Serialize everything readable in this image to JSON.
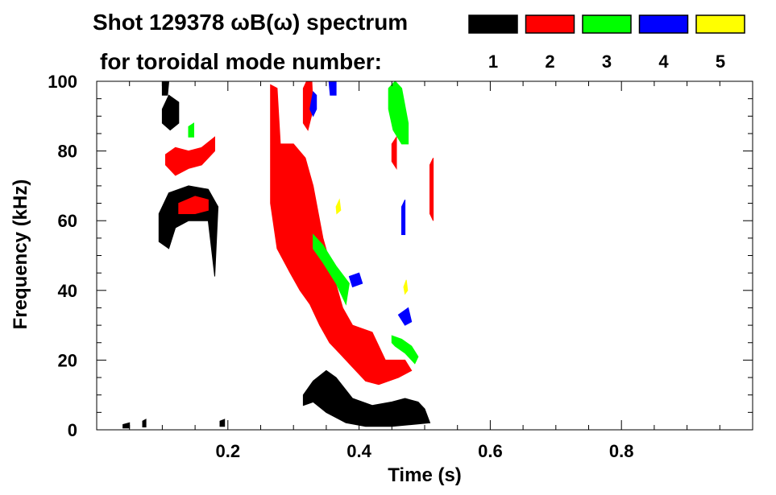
{
  "chart_data": {
    "type": "spectrogram",
    "title_line1": "Shot 129378 ωB(ω) spectrum",
    "title_line2": "for toroidal mode number:",
    "xlabel": "Time (s)",
    "ylabel": "Frequency (kHz)",
    "xlim": [
      0.0,
      1.0
    ],
    "ylim": [
      0,
      100
    ],
    "x_ticks": [
      {
        "value": 0.2,
        "label": "0.2"
      },
      {
        "value": 0.4,
        "label": "0.4"
      },
      {
        "value": 0.6,
        "label": "0.6"
      },
      {
        "value": 0.8,
        "label": "0.8"
      }
    ],
    "y_ticks": [
      {
        "value": 0,
        "label": "0"
      },
      {
        "value": 20,
        "label": "20"
      },
      {
        "value": 40,
        "label": "40"
      },
      {
        "value": 60,
        "label": "60"
      },
      {
        "value": 80,
        "label": "80"
      },
      {
        "value": 100,
        "label": "100"
      }
    ],
    "legend": [
      {
        "n": "1",
        "color": "#000000"
      },
      {
        "n": "2",
        "color": "#ff0000"
      },
      {
        "n": "3",
        "color": "#00ff00"
      },
      {
        "n": "4",
        "color": "#0000ff"
      },
      {
        "n": "5",
        "color": "#ffff00"
      }
    ],
    "regions": [
      {
        "mode": "1",
        "color": "#000000",
        "poly": [
          [
            0.095,
            62
          ],
          [
            0.11,
            68
          ],
          [
            0.14,
            70
          ],
          [
            0.17,
            69
          ],
          [
            0.185,
            64
          ],
          [
            0.18,
            44
          ],
          [
            0.17,
            60
          ],
          [
            0.14,
            60
          ],
          [
            0.12,
            58
          ],
          [
            0.11,
            52
          ],
          [
            0.095,
            54
          ]
        ]
      },
      {
        "mode": "1",
        "color": "#000000",
        "poly": [
          [
            0.1,
            92
          ],
          [
            0.11,
            96
          ],
          [
            0.125,
            94
          ],
          [
            0.125,
            88
          ],
          [
            0.112,
            86
          ],
          [
            0.1,
            88
          ]
        ]
      },
      {
        "mode": "1",
        "color": "#000000",
        "poly": [
          [
            0.1,
            100
          ],
          [
            0.11,
            100
          ],
          [
            0.108,
            96
          ],
          [
            0.1,
            96
          ]
        ]
      },
      {
        "mode": "1",
        "color": "#000000",
        "poly": [
          [
            0.315,
            10
          ],
          [
            0.33,
            14
          ],
          [
            0.35,
            17
          ],
          [
            0.365,
            15
          ],
          [
            0.39,
            9
          ],
          [
            0.42,
            7
          ],
          [
            0.45,
            8
          ],
          [
            0.47,
            9
          ],
          [
            0.49,
            8
          ],
          [
            0.5,
            6
          ],
          [
            0.508,
            2
          ],
          [
            0.48,
            1.5
          ],
          [
            0.45,
            1
          ],
          [
            0.41,
            1
          ],
          [
            0.38,
            2
          ],
          [
            0.35,
            5
          ],
          [
            0.33,
            8
          ],
          [
            0.315,
            7
          ]
        ]
      },
      {
        "mode": "1",
        "color": "#000000",
        "poly": [
          [
            0.04,
            1.5
          ],
          [
            0.05,
            2
          ],
          [
            0.05,
            0.5
          ],
          [
            0.04,
            0.5
          ]
        ]
      },
      {
        "mode": "1",
        "color": "#000000",
        "poly": [
          [
            0.07,
            2.5
          ],
          [
            0.075,
            3
          ],
          [
            0.075,
            0.8
          ],
          [
            0.07,
            0.8
          ]
        ]
      },
      {
        "mode": "1",
        "color": "#000000",
        "poly": [
          [
            0.188,
            2.5
          ],
          [
            0.195,
            3
          ],
          [
            0.195,
            1
          ],
          [
            0.188,
            1
          ]
        ]
      },
      {
        "mode": "2",
        "color": "#ff0000",
        "poly": [
          [
            0.105,
            79
          ],
          [
            0.12,
            81
          ],
          [
            0.14,
            80
          ],
          [
            0.16,
            81
          ],
          [
            0.18,
            84
          ],
          [
            0.18,
            80
          ],
          [
            0.16,
            76
          ],
          [
            0.14,
            75
          ],
          [
            0.12,
            73
          ],
          [
            0.105,
            76
          ]
        ]
      },
      {
        "mode": "2",
        "color": "#ff0000",
        "poly": [
          [
            0.125,
            65
          ],
          [
            0.15,
            67
          ],
          [
            0.17,
            66
          ],
          [
            0.17,
            63
          ],
          [
            0.15,
            62
          ],
          [
            0.125,
            62
          ]
        ]
      },
      {
        "mode": "2",
        "color": "#ff0000",
        "poly": [
          [
            0.265,
            99
          ],
          [
            0.275,
            98
          ],
          [
            0.28,
            82
          ],
          [
            0.3,
            82
          ],
          [
            0.318,
            78
          ],
          [
            0.33,
            70
          ],
          [
            0.345,
            55
          ],
          [
            0.36,
            45
          ],
          [
            0.375,
            35
          ],
          [
            0.39,
            30
          ],
          [
            0.42,
            28
          ],
          [
            0.44,
            20
          ],
          [
            0.47,
            20
          ],
          [
            0.48,
            17
          ],
          [
            0.46,
            15
          ],
          [
            0.43,
            13
          ],
          [
            0.41,
            14
          ],
          [
            0.39,
            18
          ],
          [
            0.37,
            22
          ],
          [
            0.355,
            25
          ],
          [
            0.34,
            30
          ],
          [
            0.325,
            36
          ],
          [
            0.31,
            40
          ],
          [
            0.295,
            45
          ],
          [
            0.275,
            52
          ],
          [
            0.265,
            65
          ]
        ]
      },
      {
        "mode": "2",
        "color": "#ff0000",
        "poly": [
          [
            0.315,
            98
          ],
          [
            0.32,
            100
          ],
          [
            0.328,
            100
          ],
          [
            0.33,
            92
          ],
          [
            0.322,
            86
          ],
          [
            0.315,
            88
          ]
        ]
      },
      {
        "mode": "2",
        "color": "#ff0000",
        "poly": [
          [
            0.45,
            82
          ],
          [
            0.457,
            84
          ],
          [
            0.457,
            75
          ],
          [
            0.45,
            77
          ]
        ]
      },
      {
        "mode": "2",
        "color": "#ff0000",
        "poly": [
          [
            0.508,
            76
          ],
          [
            0.513,
            78
          ],
          [
            0.513,
            60
          ],
          [
            0.508,
            62
          ]
        ]
      },
      {
        "mode": "3",
        "color": "#00ff00",
        "poly": [
          [
            0.14,
            87
          ],
          [
            0.148,
            88
          ],
          [
            0.148,
            84
          ],
          [
            0.14,
            84
          ]
        ]
      },
      {
        "mode": "3",
        "color": "#00ff00",
        "poly": [
          [
            0.33,
            56
          ],
          [
            0.345,
            53
          ],
          [
            0.365,
            47
          ],
          [
            0.385,
            42
          ],
          [
            0.38,
            36
          ],
          [
            0.365,
            42
          ],
          [
            0.345,
            48
          ],
          [
            0.33,
            52
          ]
        ]
      },
      {
        "mode": "3",
        "color": "#00ff00",
        "poly": [
          [
            0.445,
            98
          ],
          [
            0.455,
            100
          ],
          [
            0.465,
            98
          ],
          [
            0.475,
            88
          ],
          [
            0.475,
            82
          ],
          [
            0.465,
            82
          ],
          [
            0.452,
            86
          ],
          [
            0.445,
            92
          ]
        ]
      },
      {
        "mode": "3",
        "color": "#00ff00",
        "poly": [
          [
            0.45,
            27
          ],
          [
            0.465,
            26
          ],
          [
            0.48,
            24
          ],
          [
            0.49,
            21
          ],
          [
            0.485,
            19
          ],
          [
            0.47,
            22
          ],
          [
            0.455,
            24
          ],
          [
            0.45,
            25
          ]
        ]
      },
      {
        "mode": "4",
        "color": "#0000ff",
        "poly": [
          [
            0.325,
            92
          ],
          [
            0.33,
            97
          ],
          [
            0.335,
            96
          ],
          [
            0.335,
            92
          ],
          [
            0.33,
            90
          ]
        ]
      },
      {
        "mode": "4",
        "color": "#0000ff",
        "poly": [
          [
            0.354,
            100
          ],
          [
            0.365,
            100
          ],
          [
            0.365,
            96
          ],
          [
            0.356,
            96
          ]
        ]
      },
      {
        "mode": "4",
        "color": "#0000ff",
        "poly": [
          [
            0.465,
            64
          ],
          [
            0.47,
            66
          ],
          [
            0.47,
            56
          ],
          [
            0.465,
            56
          ]
        ]
      },
      {
        "mode": "4",
        "color": "#0000ff",
        "poly": [
          [
            0.385,
            44
          ],
          [
            0.4,
            45
          ],
          [
            0.405,
            42
          ],
          [
            0.39,
            41
          ]
        ]
      },
      {
        "mode": "4",
        "color": "#0000ff",
        "poly": [
          [
            0.46,
            33
          ],
          [
            0.475,
            35
          ],
          [
            0.48,
            31
          ],
          [
            0.47,
            30
          ]
        ]
      },
      {
        "mode": "5",
        "color": "#ffff00",
        "poly": [
          [
            0.365,
            64
          ],
          [
            0.37,
            66
          ],
          [
            0.372,
            63
          ],
          [
            0.366,
            62
          ]
        ]
      },
      {
        "mode": "5",
        "color": "#ffff00",
        "poly": [
          [
            0.468,
            41
          ],
          [
            0.472,
            43
          ],
          [
            0.474,
            40
          ],
          [
            0.47,
            39
          ]
        ]
      }
    ]
  }
}
